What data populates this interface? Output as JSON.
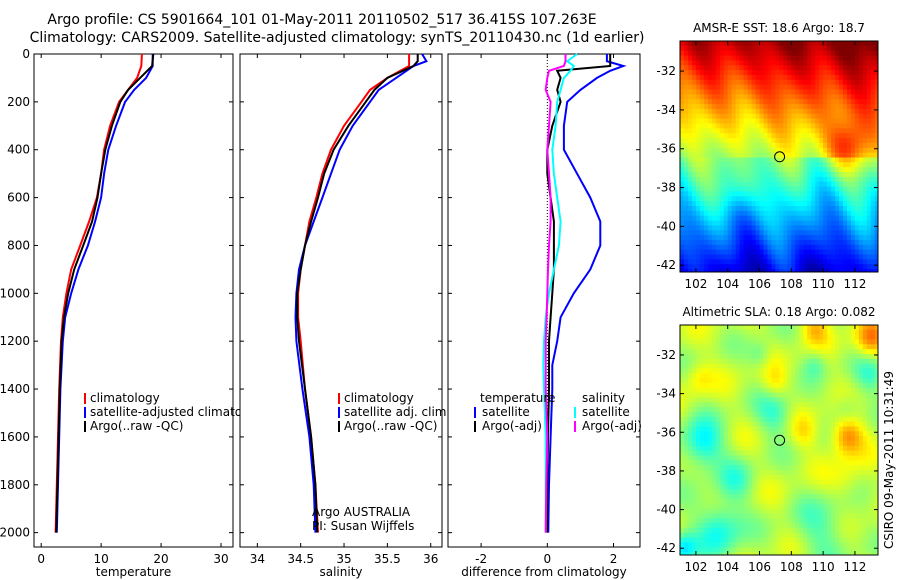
{
  "figure": {
    "title_line1": "Argo profile: CS 5901664_101 01-May-2011 20110502_517 36.415S 107.263E",
    "title_line2": "Climatology: CARS2009. Satellite-adjusted climatology: synTS_20110430.nc (1d earlier)",
    "side_stamp": "CSIRO 09-May-2011 10:31:49",
    "credit_line1": "Argo AUSTRALIA",
    "credit_line2": "PI: Susan Wijffels"
  },
  "colors": {
    "red": "#ff0000",
    "blue": "#0000ff",
    "black": "#000000",
    "cyan": "#00ffff",
    "magenta": "#ff00ff"
  },
  "chart_data": [
    {
      "type": "line",
      "xlabel": "temperature",
      "ylabel": "",
      "xlim": [
        -1.2,
        32
      ],
      "ylim": [
        2060,
        0
      ],
      "xticks": [
        0,
        10,
        20,
        30
      ],
      "xtick_labels": [
        "0",
        "10",
        "20",
        "30"
      ],
      "yticks": [
        0,
        200,
        400,
        600,
        800,
        1000,
        1200,
        1400,
        1600,
        1800,
        2000
      ],
      "ytick_labels": [
        "0",
        "200",
        "400",
        "600",
        "800",
        "1000",
        "1200",
        "1400",
        "1600",
        "1800",
        "2000"
      ],
      "depth": [
        0,
        50,
        100,
        150,
        200,
        300,
        400,
        500,
        600,
        700,
        800,
        900,
        1000,
        1100,
        1200,
        1400,
        1600,
        1800,
        2000
      ],
      "series": [
        {
          "name": "climatology",
          "color": "red",
          "values": [
            16.8,
            16.7,
            16.0,
            14.5,
            13.0,
            11.5,
            10.5,
            10.0,
            9.3,
            8.0,
            6.5,
            5.0,
            4.2,
            3.6,
            3.3,
            3.0,
            2.8,
            2.6,
            2.4
          ]
        },
        {
          "name": "satellite-adjusted climatology",
          "color": "blue",
          "values": [
            18.6,
            18.6,
            17.5,
            15.5,
            14.0,
            12.5,
            11.2,
            10.5,
            10.0,
            9.0,
            7.8,
            6.2,
            5.0,
            4.0,
            3.6,
            3.2,
            3.0,
            2.8,
            2.6
          ]
        },
        {
          "name": "Argo(..raw -QC)",
          "color": "black",
          "values": [
            18.7,
            18.5,
            16.5,
            14.5,
            13.2,
            11.8,
            10.7,
            10.0,
            9.4,
            8.5,
            7.0,
            5.5,
            4.5,
            3.8,
            3.4,
            3.1,
            2.9,
            2.7,
            2.5
          ]
        }
      ],
      "legend": [
        "climatology",
        "satellite-adjusted climatology",
        "Argo(..raw -QC)"
      ]
    },
    {
      "type": "line",
      "xlabel": "salinity",
      "ylabel": "",
      "xlim": [
        33.8,
        36.13
      ],
      "ylim": [
        2060,
        0
      ],
      "xticks": [
        34,
        34.5,
        35,
        35.5,
        36
      ],
      "xtick_labels": [
        "34",
        "34.5",
        "35",
        "35.5",
        "36"
      ],
      "depth": [
        0,
        30,
        50,
        100,
        150,
        200,
        300,
        400,
        500,
        600,
        700,
        800,
        900,
        1000,
        1100,
        1200,
        1400,
        1600,
        1800,
        2000
      ],
      "series": [
        {
          "name": "climatology",
          "color": "red",
          "values": [
            35.75,
            35.75,
            35.75,
            35.5,
            35.3,
            35.2,
            35.0,
            34.85,
            34.75,
            34.68,
            34.6,
            34.55,
            34.5,
            34.47,
            34.47,
            34.5,
            34.55,
            34.62,
            34.67,
            34.7
          ]
        },
        {
          "name": "satellite adj. clim.",
          "color": "blue",
          "values": [
            35.9,
            35.95,
            35.8,
            35.6,
            35.4,
            35.3,
            35.1,
            34.95,
            34.85,
            34.75,
            34.65,
            34.55,
            34.48,
            34.45,
            34.44,
            34.45,
            34.52,
            34.6,
            34.65,
            34.67
          ]
        },
        {
          "name": "Argo(..raw -QC)",
          "color": "black",
          "values": [
            35.85,
            35.85,
            35.8,
            35.5,
            35.35,
            35.25,
            35.05,
            34.88,
            34.77,
            34.7,
            34.62,
            34.55,
            34.5,
            34.46,
            34.46,
            34.48,
            34.55,
            34.62,
            34.67,
            34.69
          ]
        }
      ],
      "legend": [
        "climatology",
        "satellite adj. clim.",
        "Argo(..raw -QC)"
      ]
    },
    {
      "type": "line",
      "xlabel": "difference from climatology",
      "ylabel": "",
      "xlim": [
        -3.0,
        2.8
      ],
      "ylim": [
        2060,
        0
      ],
      "xticks": [
        -2,
        0,
        2
      ],
      "xtick_labels": [
        "-2",
        "0",
        "2"
      ],
      "depth": [
        0,
        30,
        50,
        70,
        100,
        150,
        200,
        300,
        400,
        500,
        600,
        700,
        800,
        900,
        1000,
        1100,
        1200,
        1300,
        1400,
        1600,
        1800,
        2000
      ],
      "series": [
        {
          "name": "temperature satellite",
          "color": "blue",
          "values": [
            1.8,
            1.8,
            2.3,
            1.9,
            1.5,
            1.0,
            0.6,
            0.5,
            0.5,
            0.9,
            1.3,
            1.6,
            1.6,
            1.3,
            0.8,
            0.4,
            0.3,
            0.15,
            0.15,
            0.1,
            0.05,
            0.03
          ]
        },
        {
          "name": "temperature Argo(-adj)",
          "color": "black",
          "values": [
            1.9,
            1.9,
            1.9,
            0.3,
            0.4,
            0.3,
            0.4,
            0.15,
            0.0,
            0.0,
            0.1,
            0.2,
            0.2,
            0.2,
            0.15,
            0.1,
            0.05,
            0.05,
            0.05,
            0.02,
            0.0,
            0.0
          ]
        },
        {
          "name": "salinity satellite",
          "color": "cyan",
          "values": [
            0.9,
            0.6,
            0.8,
            0.7,
            0.5,
            0.4,
            0.3,
            0.25,
            0.15,
            0.2,
            0.3,
            0.4,
            0.35,
            0.2,
            0.05,
            -0.05,
            -0.1,
            -0.12,
            -0.1,
            -0.05,
            -0.05,
            -0.05
          ]
        },
        {
          "name": "salinity Argo(-adj)",
          "color": "magenta",
          "values": [
            0.55,
            0.55,
            0.5,
            0.05,
            0.0,
            -0.05,
            0.1,
            0.05,
            0.0,
            0.05,
            0.1,
            0.1,
            0.05,
            0.02,
            0.0,
            -0.02,
            -0.05,
            -0.05,
            -0.05,
            0.0,
            -0.03,
            -0.05
          ]
        }
      ],
      "legend_groups": [
        {
          "title": "temperature",
          "items": [
            "satellite",
            "Argo(-adj)"
          ]
        },
        {
          "title": "salinity",
          "items": [
            "satellite",
            "Argo(-adj)"
          ]
        }
      ]
    },
    {
      "type": "heatmap",
      "title": "AMSR-E SST: 18.6 Argo: 18.7",
      "xlim": [
        101,
        113.45
      ],
      "ylim": [
        -42.35,
        -30.45
      ],
      "xtick_labels": [
        "102",
        "104",
        "106",
        "108",
        "110",
        "112"
      ],
      "ytick_labels": [
        "-32",
        "-34",
        "-36",
        "-38",
        "-40",
        "-42"
      ],
      "marker": {
        "lon": 107.263,
        "lat": -36.415
      }
    },
    {
      "type": "heatmap",
      "title": "Altimetric SLA: 0.18 Argo: 0.082",
      "xlim": [
        101,
        113.45
      ],
      "ylim": [
        -42.35,
        -30.45
      ],
      "xtick_labels": [
        "102",
        "104",
        "106",
        "108",
        "110",
        "112"
      ],
      "ytick_labels": [
        "-32",
        "-34",
        "-36",
        "-38",
        "-40",
        "-42"
      ],
      "marker": {
        "lon": 107.263,
        "lat": -36.415
      }
    }
  ]
}
